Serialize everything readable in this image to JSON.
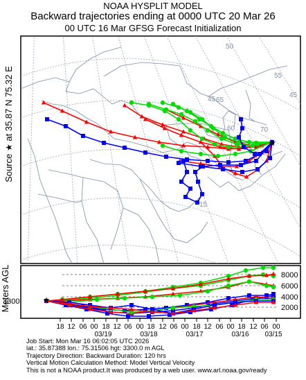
{
  "header": {
    "line1": "NOAA HYSPLIT MODEL",
    "line2": "Backward trajectories ending at 0000 UTC 20 Mar 26",
    "line3": "00 UTC 16 Mar    GFSG  Forecast Initialization"
  },
  "source_label": {
    "prefix": "Source",
    "star": "★",
    "text": "at  35.87 N  75.32 E"
  },
  "map": {
    "lon_labels": [
      "70",
      "65",
      "60",
      "55",
      "50",
      "45"
    ],
    "lat_labels": [
      "15",
      "45"
    ],
    "source_marker": "star-icon"
  },
  "vertical": {
    "axis_label": "Meters AGL",
    "start_height": "3300",
    "y_ticks": [
      "8000",
      "6000",
      "4000",
      "2000"
    ],
    "time_ticks": [
      "18",
      "12",
      "06",
      "00",
      "18",
      "12",
      "06",
      "00",
      "18",
      "12",
      "06",
      "00",
      "18",
      "12",
      "06",
      "00",
      "18",
      "12",
      "06",
      "00"
    ],
    "date_labels": [
      "03/19",
      "03/18",
      "03/17",
      "03/16",
      "03/15"
    ]
  },
  "footer": {
    "line1": "Job Start: Mon Mar 16 06:02:05 UTC 2026",
    "line2": "lat.: 35.87388   lon.: 75.31506   hgt: 3300.0 m AGL",
    "line3": "Trajectory Direction: Backward       Duration: 120 hrs",
    "line4": "Vertical Motion Calculation Method: Model Vertical Velocity",
    "line5": "This is not a NOAA product.It was produced by a web user. www.arl.noaa.gov/ready"
  },
  "colors": {
    "red": "#ff0000",
    "blue": "#0000ff",
    "green": "#00dd00",
    "map_lines": "#7a8ea6",
    "grid_lines": "#9aa5b8"
  }
}
